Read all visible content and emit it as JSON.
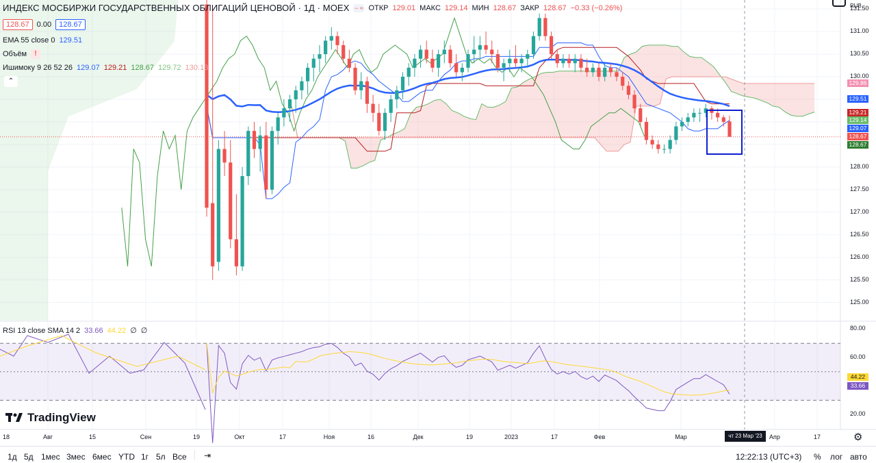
{
  "header": {
    "title": "ИНДЕКС МОСБИРЖИ ГОСУДАРСТВЕННЫХ ОБЛИГАЦИЙ ЦЕНОВОЙ · 1Д · MOEX",
    "ohlc": {
      "open_label": "ОТКР",
      "open": "129.01",
      "high_label": "МАКС",
      "high": "129.14",
      "low_label": "МИН",
      "low": "128.67",
      "close_label": "ЗАКР",
      "close": "128.67",
      "change": "−0.33 (−0.26%)"
    },
    "currency": "RUB"
  },
  "quote_row": {
    "bid": "128.67",
    "spread": "0.00",
    "ask": "128.67"
  },
  "indicators": {
    "ema": {
      "name": "EMA 55 close 0",
      "value": "129.51",
      "color": "#2962ff"
    },
    "volume": {
      "name": "Объём"
    },
    "ichimoku": {
      "name": "Ишимоку 9 26 52 26",
      "values": [
        "129.07",
        "129.21",
        "128.67",
        "129.72",
        "130.13"
      ],
      "colors": [
        "#2962ff",
        "#b71c1c",
        "#43a047",
        "#a5d6a7",
        "#ef9a9a"
      ]
    },
    "rsi": {
      "name": "RSI 13 close SMA 14 2",
      "rsi_value": "33.66",
      "sma_value": "44.22",
      "extra1": "∅",
      "extra2": "∅"
    }
  },
  "price_axis": {
    "ticks": [
      "131.50",
      "131.00",
      "130.50",
      "130.00",
      "129.50",
      "129.00",
      "128.50",
      "128.00",
      "127.50",
      "127.00",
      "126.50",
      "126.00",
      "125.50",
      "125.00"
    ],
    "tags": [
      {
        "label": "129.86",
        "color": "#f48fb1",
        "price": 129.86
      },
      {
        "label": "129.51",
        "color": "#2962ff",
        "price": 129.51
      },
      {
        "label": "129.21",
        "color": "#c62828",
        "price": 129.21
      },
      {
        "label": "129.14",
        "color": "#66bb6a",
        "price": 129.14
      },
      {
        "label": "129.07",
        "color": "#2962ff",
        "price": 129.07
      },
      {
        "label": "128.67",
        "color": "#ef5350",
        "price": 128.67
      },
      {
        "label": "128.67",
        "color": "#2e7d32",
        "price": 128.52
      }
    ]
  },
  "rsi_axis": {
    "ticks": [
      "80.00",
      "60.00",
      "40.00",
      "20.00"
    ],
    "tags": [
      {
        "label": "44.22",
        "color": "#fdd835",
        "text_color": "#131722"
      },
      {
        "label": "33.66",
        "color": "#7e57c2",
        "text_color": "#ffffff"
      }
    ]
  },
  "time_axis": {
    "labels": [
      "18",
      "Авг",
      "15",
      "Сен",
      "19",
      "Окт",
      "17",
      "Ноя",
      "16",
      "Дек",
      "19",
      "2023",
      "17",
      "Фев",
      "Мар",
      "Апр",
      "17"
    ],
    "crosshair_label": "чт 23 Мар '23"
  },
  "bottom_bar": {
    "timeframes": [
      "1д",
      "5д",
      "1мес",
      "3мес",
      "6мес",
      "YTD",
      "1г",
      "5л",
      "Все"
    ],
    "clock": "12:22:13 (UTC+3)",
    "percent": "%",
    "log": "лог",
    "auto": "авто"
  },
  "branding": {
    "logo_text": "TradingView"
  },
  "chart_data": {
    "type": "candlestick",
    "last_price": 128.67,
    "price_range": [
      124.6,
      131.7
    ],
    "rsi_range": [
      10,
      85
    ],
    "rsi_bands": [
      70,
      50,
      30
    ],
    "candles": [
      [
        131.6,
        131.8,
        126.9,
        127.1
      ],
      [
        127.2,
        131.5,
        125.5,
        125.8
      ],
      [
        125.9,
        128.6,
        125.7,
        128.4
      ],
      [
        128.4,
        128.8,
        127.8,
        128.1
      ],
      [
        128.1,
        128.6,
        126.2,
        126.4
      ],
      [
        126.4,
        127.4,
        125.6,
        125.8
      ],
      [
        125.8,
        128.0,
        125.7,
        127.8
      ],
      [
        127.8,
        128.9,
        127.6,
        128.8
      ],
      [
        128.8,
        129.0,
        128.2,
        128.4
      ],
      [
        128.4,
        128.9,
        127.9,
        128.7
      ],
      [
        128.7,
        129.0,
        127.3,
        127.5
      ],
      [
        127.5,
        128.9,
        127.4,
        128.8
      ],
      [
        128.8,
        129.2,
        128.5,
        129.1
      ],
      [
        129.1,
        129.5,
        128.9,
        129.3
      ],
      [
        129.3,
        129.6,
        129.0,
        129.5
      ],
      [
        129.5,
        129.8,
        129.2,
        129.7
      ],
      [
        129.7,
        130.0,
        129.5,
        129.9
      ],
      [
        129.9,
        130.3,
        129.6,
        130.2
      ],
      [
        130.2,
        130.5,
        129.9,
        130.4
      ],
      [
        130.4,
        130.7,
        130.1,
        130.5
      ],
      [
        130.5,
        130.9,
        130.3,
        130.8
      ],
      [
        130.8,
        131.1,
        130.6,
        130.9
      ],
      [
        130.9,
        131.0,
        130.5,
        130.7
      ],
      [
        130.7,
        130.8,
        130.3,
        130.4
      ],
      [
        130.4,
        130.6,
        130.1,
        130.2
      ],
      [
        130.2,
        130.3,
        129.6,
        129.7
      ],
      [
        129.7,
        130.1,
        129.5,
        129.9
      ],
      [
        129.9,
        130.0,
        129.2,
        129.4
      ],
      [
        129.4,
        129.6,
        129.0,
        129.2
      ],
      [
        129.2,
        129.4,
        128.7,
        128.8
      ],
      [
        128.8,
        129.3,
        128.6,
        129.2
      ],
      [
        129.2,
        129.6,
        129.0,
        129.5
      ],
      [
        129.5,
        129.8,
        129.3,
        129.7
      ],
      [
        129.7,
        130.1,
        129.5,
        130.0
      ],
      [
        130.0,
        130.3,
        129.8,
        130.2
      ],
      [
        130.2,
        130.5,
        130.0,
        130.4
      ],
      [
        130.4,
        130.7,
        130.2,
        130.6
      ],
      [
        130.6,
        130.8,
        130.3,
        130.4
      ],
      [
        130.4,
        130.6,
        130.1,
        130.2
      ],
      [
        130.2,
        130.6,
        130.0,
        130.5
      ],
      [
        130.5,
        130.8,
        130.3,
        130.6
      ],
      [
        130.6,
        130.7,
        130.2,
        130.3
      ],
      [
        130.3,
        130.5,
        130.0,
        130.1
      ],
      [
        130.1,
        130.3,
        129.9,
        130.2
      ],
      [
        130.2,
        130.6,
        130.1,
        130.5
      ],
      [
        130.5,
        130.9,
        130.3,
        130.6
      ],
      [
        130.6,
        130.9,
        130.4,
        130.7
      ],
      [
        130.7,
        131.0,
        130.5,
        130.6
      ],
      [
        130.6,
        130.8,
        130.3,
        130.5
      ],
      [
        130.5,
        130.6,
        130.1,
        130.2
      ],
      [
        130.2,
        130.4,
        129.9,
        130.3
      ],
      [
        130.3,
        130.6,
        130.1,
        130.4
      ],
      [
        130.4,
        130.7,
        130.2,
        130.3
      ],
      [
        130.3,
        130.5,
        130.1,
        130.4
      ],
      [
        130.4,
        130.6,
        130.2,
        130.5
      ],
      [
        130.5,
        131.0,
        130.4,
        130.9
      ],
      [
        130.9,
        131.4,
        130.8,
        131.3
      ],
      [
        131.3,
        131.4,
        130.8,
        130.9
      ],
      [
        130.9,
        131.0,
        130.4,
        130.5
      ],
      [
        130.5,
        130.6,
        130.2,
        130.3
      ],
      [
        130.3,
        130.5,
        130.2,
        130.4
      ],
      [
        130.4,
        130.5,
        130.2,
        130.3
      ],
      [
        130.3,
        130.5,
        130.1,
        130.4
      ],
      [
        130.4,
        130.5,
        130.1,
        130.2
      ],
      [
        130.2,
        130.4,
        130.0,
        130.1
      ],
      [
        130.1,
        130.3,
        130.0,
        130.2
      ],
      [
        130.2,
        130.3,
        129.9,
        130.0
      ],
      [
        130.0,
        130.3,
        129.9,
        130.2
      ],
      [
        130.2,
        130.3,
        130.0,
        130.1
      ],
      [
        130.1,
        130.2,
        129.9,
        130.0
      ],
      [
        130.0,
        130.1,
        129.7,
        129.8
      ],
      [
        129.8,
        129.9,
        129.5,
        129.6
      ],
      [
        129.6,
        129.7,
        129.2,
        129.3
      ],
      [
        129.3,
        129.4,
        128.9,
        129.0
      ],
      [
        129.0,
        129.1,
        128.5,
        128.6
      ],
      [
        128.6,
        128.7,
        128.4,
        128.5
      ],
      [
        128.5,
        128.6,
        128.3,
        128.4
      ],
      [
        128.4,
        128.5,
        128.3,
        128.4
      ],
      [
        128.4,
        128.7,
        128.3,
        128.6
      ],
      [
        128.6,
        129.0,
        128.5,
        128.9
      ],
      [
        128.9,
        129.1,
        128.8,
        129.0
      ],
      [
        129.0,
        129.2,
        128.9,
        129.1
      ],
      [
        129.1,
        129.3,
        129.0,
        129.2
      ],
      [
        129.2,
        129.3,
        129.0,
        129.2
      ],
      [
        129.2,
        129.4,
        129.1,
        129.3
      ],
      [
        129.3,
        129.35,
        129.05,
        129.2
      ],
      [
        129.2,
        129.3,
        129.0,
        129.1
      ],
      [
        129.1,
        129.15,
        128.9,
        129.0
      ],
      [
        129.01,
        129.14,
        128.67,
        128.67
      ]
    ]
  }
}
